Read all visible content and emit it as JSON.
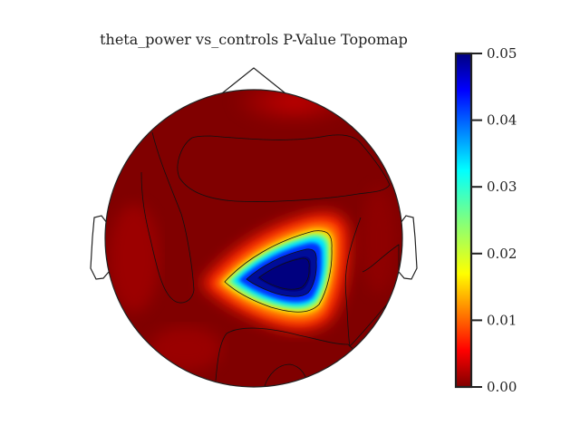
{
  "chart_data": {
    "type": "heatmap",
    "subtype": "topomap",
    "title": "theta_power vs_controls P-Value Topomap",
    "colormap": "jet",
    "colorbar": {
      "min": 0.0,
      "max": 0.05,
      "tick_labels": [
        "0.00",
        "0.01",
        "0.02",
        "0.03",
        "0.04",
        "0.05"
      ],
      "tick_values": [
        0.0,
        0.01,
        0.02,
        0.03,
        0.04,
        0.05
      ]
    },
    "head_features": [
      "nose",
      "left-ear",
      "right-ear",
      "head-outline"
    ],
    "contour_lines": true,
    "regions": [
      {
        "name": "background",
        "p_value": 0.0
      },
      {
        "name": "central-right cluster peak",
        "p_value": 0.05
      },
      {
        "name": "central-right cluster inner ring",
        "p_value": 0.04
      },
      {
        "name": "central-right cluster mid ring",
        "p_value": 0.03
      },
      {
        "name": "central-right cluster outer ring",
        "p_value": 0.02
      }
    ]
  }
}
